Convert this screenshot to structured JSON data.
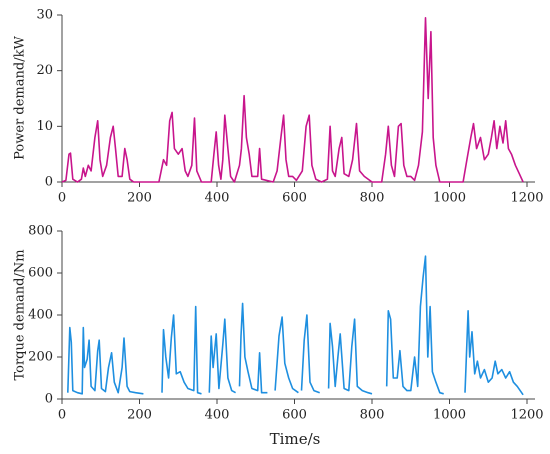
{
  "chart_data": [
    {
      "type": "line",
      "ylabel": "Power demand/kW",
      "color": "#c8158c",
      "xlim": [
        0,
        1200
      ],
      "xticks": [
        0,
        200,
        400,
        600,
        800,
        1000,
        1200
      ],
      "ylim": [
        0,
        30
      ],
      "yticks": [
        0,
        10,
        20,
        30
      ],
      "x": [
        0,
        10,
        18,
        22,
        28,
        40,
        50,
        55,
        60,
        68,
        75,
        85,
        92,
        98,
        105,
        115,
        125,
        132,
        138,
        145,
        155,
        162,
        168,
        175,
        185,
        250,
        262,
        270,
        278,
        284,
        290,
        300,
        310,
        318,
        325,
        335,
        342,
        348,
        360,
        385,
        392,
        398,
        404,
        410,
        415,
        420,
        428,
        435,
        445,
        458,
        463,
        470,
        476,
        483,
        490,
        505,
        510,
        515,
        545,
        555,
        565,
        572,
        578,
        585,
        595,
        605,
        620,
        630,
        638,
        645,
        655,
        670,
        685,
        692,
        698,
        705,
        715,
        722,
        728,
        740,
        750,
        760,
        768,
        780,
        800,
        825,
        835,
        842,
        850,
        858,
        868,
        875,
        882,
        890,
        900,
        910,
        920,
        930,
        938,
        945,
        952,
        958,
        965,
        975,
        1035,
        1045,
        1055,
        1062,
        1070,
        1080,
        1090,
        1100,
        1108,
        1115,
        1122,
        1130,
        1138,
        1145,
        1152,
        1160,
        1170,
        1180,
        1190
      ],
      "values": [
        0,
        0.3,
        5,
        5.2,
        0.5,
        0,
        0.5,
        2.5,
        1,
        3,
        2,
        8,
        11,
        4,
        1,
        3,
        8,
        10,
        6,
        1,
        1,
        6,
        4,
        0.5,
        0,
        0,
        4,
        3,
        11,
        12.5,
        6,
        5,
        6,
        2,
        1,
        3,
        11.5,
        2,
        0,
        0,
        5,
        9,
        3,
        0.5,
        4,
        12,
        6,
        1,
        0,
        3,
        6,
        15.5,
        8,
        5,
        1,
        1,
        6,
        0.5,
        0,
        2,
        8,
        12,
        4,
        1,
        1,
        0.3,
        2,
        10,
        12,
        3,
        0.5,
        0,
        0.5,
        10,
        2,
        1,
        6,
        8,
        1.5,
        1,
        4,
        10.5,
        2,
        1,
        0,
        0,
        5,
        10,
        3,
        1,
        10,
        10.5,
        3,
        1,
        1,
        0.3,
        3,
        9,
        29.5,
        15,
        27,
        8,
        3,
        0,
        0,
        4,
        8,
        10.5,
        6,
        8,
        4,
        5,
        8,
        11,
        6,
        10,
        7,
        11,
        6,
        5,
        3,
        1.5,
        0
      ]
    },
    {
      "type": "line",
      "ylabel": "Torque demand/Nm",
      "xlabel": "Time/s",
      "color": "#1e8fe0",
      "xlim": [
        0,
        1200
      ],
      "xticks": [
        0,
        200,
        400,
        600,
        800,
        1000,
        1200
      ],
      "ylim": [
        0,
        800
      ],
      "yticks": [
        0,
        200,
        400,
        600,
        800
      ],
      "x": [
        15,
        20,
        24,
        28,
        40,
        52,
        55,
        58,
        65,
        70,
        75,
        85,
        92,
        96,
        102,
        112,
        120,
        128,
        135,
        145,
        155,
        160,
        168,
        175,
        190,
        210,
        230,
        258,
        262,
        268,
        275,
        282,
        288,
        295,
        305,
        315,
        325,
        340,
        345,
        350,
        360,
        370,
        380,
        385,
        390,
        398,
        405,
        415,
        420,
        428,
        438,
        448,
        452,
        458,
        462,
        466,
        472,
        480,
        490,
        505,
        510,
        515,
        530,
        540,
        550,
        560,
        568,
        575,
        585,
        595,
        610,
        612,
        618,
        625,
        632,
        640,
        650,
        665,
        680,
        688,
        692,
        698,
        705,
        712,
        718,
        728,
        740,
        748,
        755,
        762,
        775,
        790,
        800,
        810,
        838,
        842,
        848,
        855,
        865,
        872,
        880,
        890,
        900,
        910,
        918,
        925,
        932,
        938,
        944,
        950,
        956,
        965,
        975,
        985,
        1000,
        1040,
        1048,
        1052,
        1058,
        1065,
        1072,
        1080,
        1090,
        1100,
        1110,
        1118,
        1125,
        1135,
        1145,
        1155,
        1165,
        1175,
        1190
      ],
      "values": [
        30,
        340,
        270,
        40,
        30,
        25,
        340,
        150,
        190,
        280,
        60,
        40,
        230,
        280,
        50,
        35,
        150,
        220,
        80,
        30,
        150,
        290,
        60,
        35,
        30,
        25,
        null,
        30,
        330,
        200,
        100,
        290,
        400,
        120,
        130,
        80,
        50,
        40,
        440,
        30,
        25,
        null,
        30,
        300,
        150,
        310,
        50,
        260,
        380,
        100,
        40,
        30,
        null,
        60,
        300,
        455,
        200,
        130,
        50,
        40,
        220,
        30,
        30,
        null,
        40,
        300,
        390,
        170,
        100,
        50,
        30,
        null,
        40,
        280,
        400,
        80,
        40,
        30,
        null,
        50,
        360,
        250,
        60,
        200,
        310,
        50,
        40,
        250,
        380,
        60,
        40,
        30,
        25,
        null,
        60,
        420,
        380,
        100,
        100,
        230,
        60,
        40,
        40,
        200,
        60,
        440,
        580,
        680,
        200,
        440,
        130,
        80,
        30,
        25,
        null,
        30,
        420,
        200,
        320,
        120,
        180,
        100,
        140,
        80,
        100,
        180,
        120,
        140,
        100,
        130,
        80,
        60,
        20
      ]
    }
  ]
}
